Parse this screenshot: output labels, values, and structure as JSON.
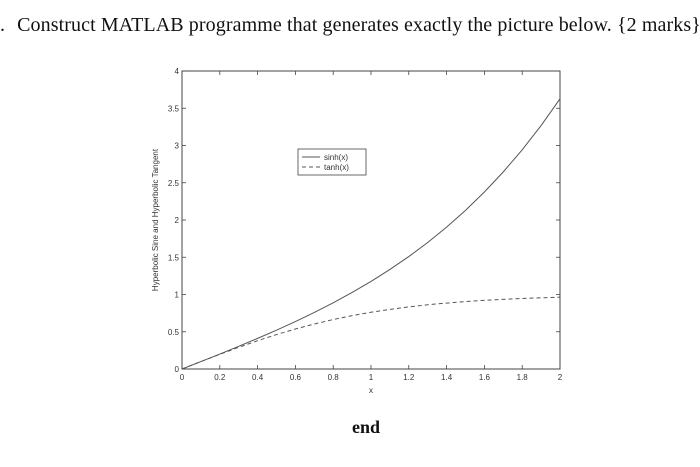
{
  "question": {
    "number": ".",
    "text": "Construct MATLAB programme that generates exactly the picture below. {2 marks}"
  },
  "chart_data": {
    "type": "line",
    "xlabel": "x",
    "ylabel": "Hyperbolic Sine and Hyperbolic Tangent",
    "xlim": [
      0,
      2
    ],
    "ylim": [
      0,
      4
    ],
    "xticks": [
      "0",
      "0.2",
      "0.4",
      "0.6",
      "0.8",
      "1",
      "1.2",
      "1.4",
      "1.6",
      "1.8",
      "2"
    ],
    "yticks": [
      "0",
      "0.5",
      "1",
      "1.5",
      "2",
      "2.5",
      "3",
      "3.5",
      "4"
    ],
    "grid": false,
    "legend_position": "upper-middle",
    "x": [
      0,
      0.1,
      0.2,
      0.3,
      0.4,
      0.5,
      0.6,
      0.7,
      0.8,
      0.9,
      1.0,
      1.1,
      1.2,
      1.3,
      1.4,
      1.5,
      1.6,
      1.7,
      1.8,
      1.9,
      2.0
    ],
    "series": [
      {
        "name": "sinh(x)",
        "style": "solid",
        "values": [
          0,
          0.1,
          0.201,
          0.305,
          0.411,
          0.521,
          0.637,
          0.759,
          0.888,
          1.027,
          1.175,
          1.336,
          1.509,
          1.698,
          1.904,
          2.129,
          2.376,
          2.646,
          2.942,
          3.268,
          3.627
        ]
      },
      {
        "name": "tanh(x)",
        "style": "dashed",
        "values": [
          0,
          0.1,
          0.197,
          0.291,
          0.38,
          0.462,
          0.537,
          0.604,
          0.664,
          0.716,
          0.762,
          0.8,
          0.834,
          0.862,
          0.885,
          0.905,
          0.922,
          0.935,
          0.947,
          0.956,
          0.964
        ]
      }
    ],
    "colors": {
      "line": "#555555",
      "axes": "#444444"
    }
  },
  "footer": {
    "label": "end"
  }
}
